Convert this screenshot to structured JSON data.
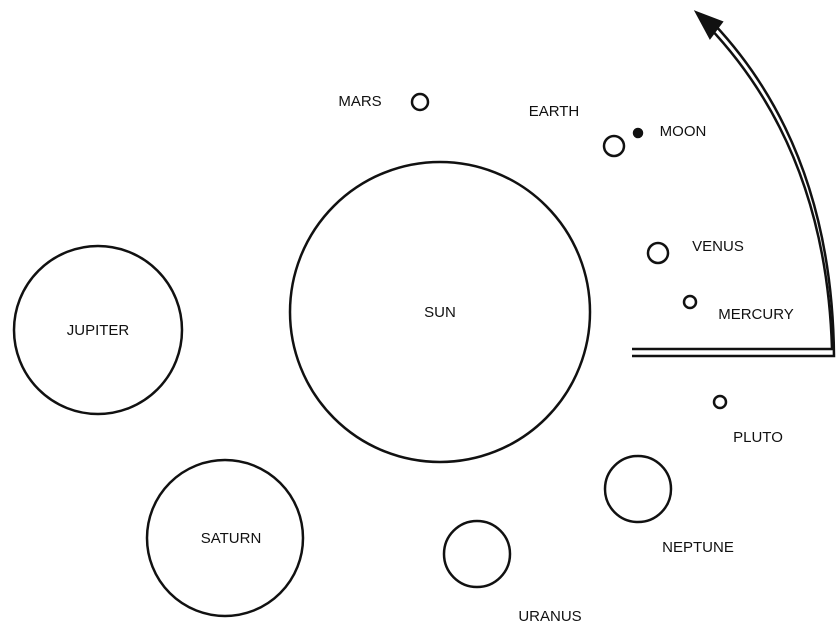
{
  "nodes": [
    {
      "label": "SUN"
    },
    {
      "label": "JUPITER"
    },
    {
      "label": "SATURN"
    },
    {
      "label": "URANUS"
    },
    {
      "label": "NEPTUNE"
    },
    {
      "label": "PLUTO"
    },
    {
      "label": "MERCURY"
    },
    {
      "label": "VENUS"
    },
    {
      "label": "EARTH"
    },
    {
      "label": "MOON"
    },
    {
      "label": "MARS"
    }
  ]
}
